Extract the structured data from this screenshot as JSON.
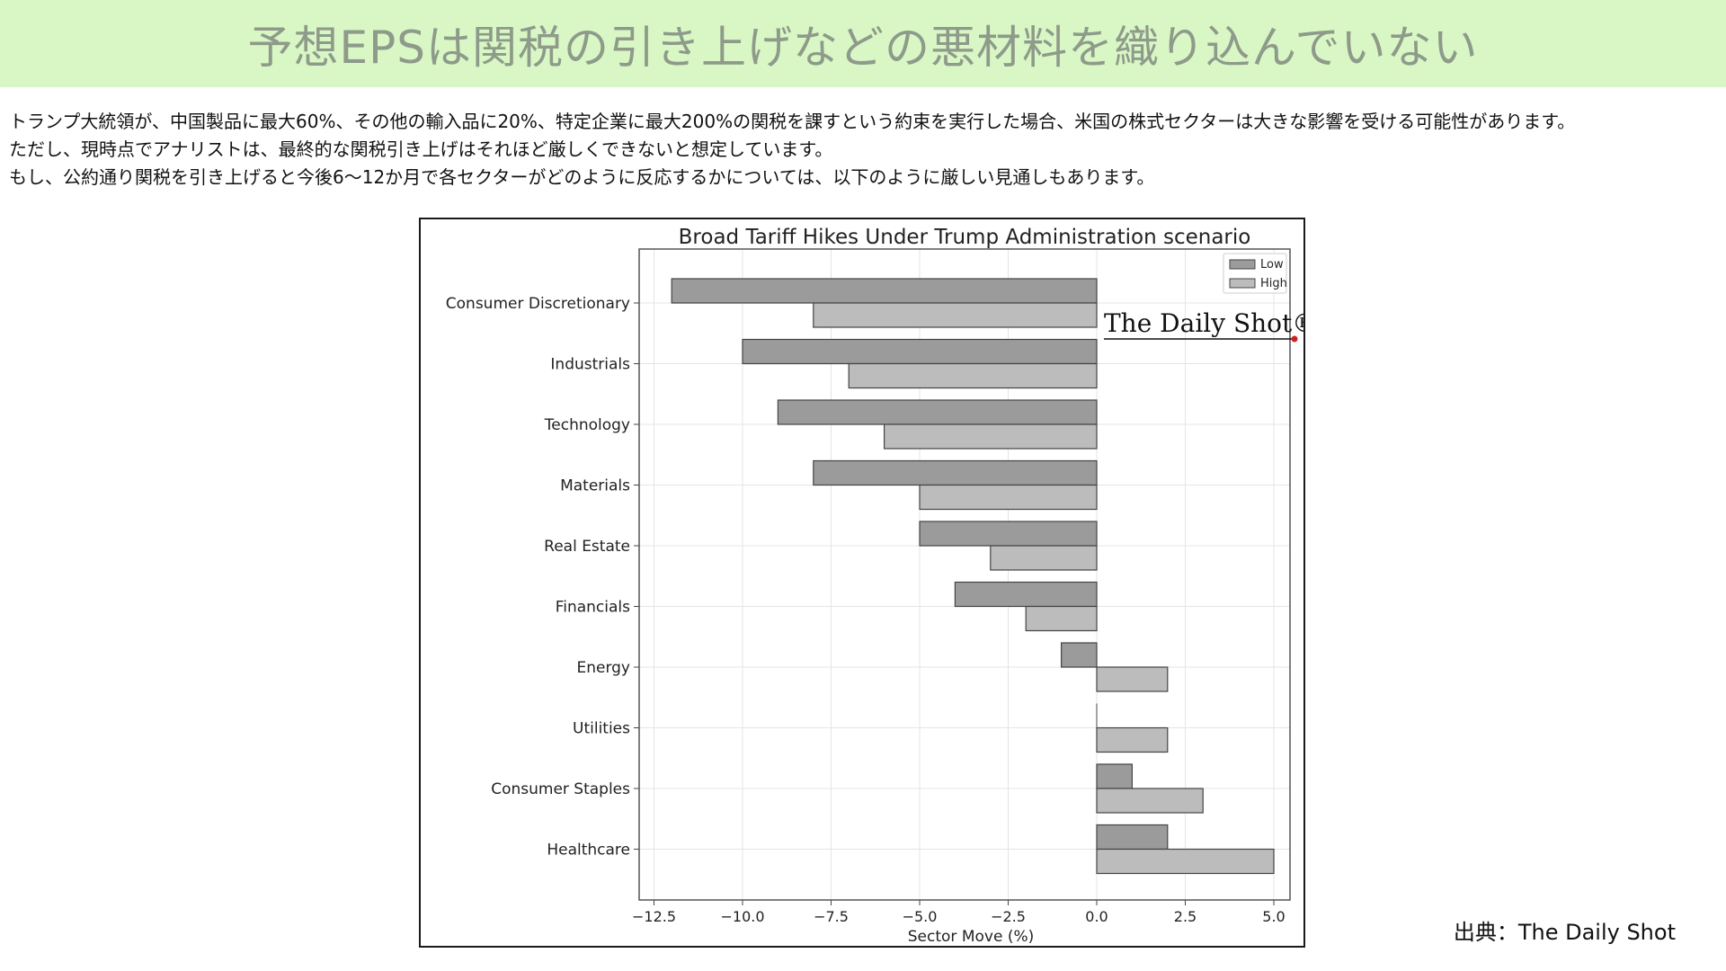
{
  "header": {
    "title": "予想EPSは関税の引き上げなどの悪材料を織り込んでいない"
  },
  "body": {
    "lines": [
      "トランプ大統領が、中国製品に最大60%、その他の輸入品に20%、特定企業に最大200%の関税を課すという約束を実行した場合、米国の株式セクターは大きな影響を受ける可能性があります。",
      "ただし、現時点でアナリストは、最終的な関税引き上げはそれほど厳しくできないと想定しています。",
      "もし、公約通り関税を引き上げると今後6〜12か月で各セクターがどのように反応するかについては、以下のように厳しい見通しもあります。"
    ]
  },
  "chart_data": {
    "type": "bar",
    "orientation": "horizontal",
    "title": "Broad Tariff Hikes Under Trump Administration scenario",
    "xlabel": "Sector Move (%)",
    "ylabel": "",
    "xlim": [
      -12.5,
      5.5
    ],
    "xticks": [
      -12.5,
      -10.0,
      -7.5,
      -5.0,
      -2.5,
      0.0,
      2.5,
      5.0
    ],
    "xtick_labels": [
      "−12.5",
      "−10.0",
      "−7.5",
      "−5.0",
      "−2.5",
      "0.0",
      "2.5",
      "5.0"
    ],
    "categories": [
      "Consumer Discretionary",
      "Industrials",
      "Technology",
      "Materials",
      "Real Estate",
      "Financials",
      "Energy",
      "Utilities",
      "Consumer Staples",
      "Healthcare"
    ],
    "series": [
      {
        "name": "Low",
        "color": "#9b9b9b",
        "values": [
          -12,
          -10,
          -9,
          -8,
          -5,
          -4,
          -1,
          0,
          1,
          2
        ]
      },
      {
        "name": "High",
        "color": "#bcbcbc",
        "values": [
          -8,
          -7,
          -6,
          -5,
          -3,
          -2,
          2,
          2,
          3,
          5
        ]
      }
    ],
    "grid": true,
    "legend_position": "top-right",
    "watermark": "The Daily Shot®"
  },
  "source": {
    "label": "出典：The Daily Shot"
  }
}
